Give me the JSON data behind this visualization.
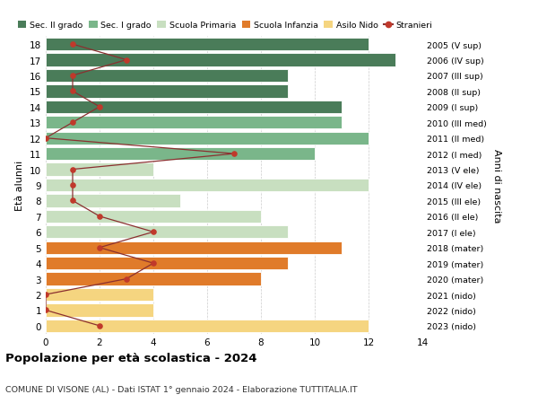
{
  "ages": [
    18,
    17,
    16,
    15,
    14,
    13,
    12,
    11,
    10,
    9,
    8,
    7,
    6,
    5,
    4,
    3,
    2,
    1,
    0
  ],
  "right_labels": [
    "2005 (V sup)",
    "2006 (IV sup)",
    "2007 (III sup)",
    "2008 (II sup)",
    "2009 (I sup)",
    "2010 (III med)",
    "2011 (II med)",
    "2012 (I med)",
    "2013 (V ele)",
    "2014 (IV ele)",
    "2015 (III ele)",
    "2016 (II ele)",
    "2017 (I ele)",
    "2018 (mater)",
    "2019 (mater)",
    "2020 (mater)",
    "2021 (nido)",
    "2022 (nido)",
    "2023 (nido)"
  ],
  "bar_values": [
    12,
    13,
    9,
    9,
    11,
    11,
    12,
    10,
    4,
    12,
    5,
    8,
    9,
    11,
    9,
    8,
    4,
    4,
    12
  ],
  "bar_colors": [
    "#4a7c59",
    "#4a7c59",
    "#4a7c59",
    "#4a7c59",
    "#4a7c59",
    "#7ab68a",
    "#7ab68a",
    "#7ab68a",
    "#c8dfc0",
    "#c8dfc0",
    "#c8dfc0",
    "#c8dfc0",
    "#c8dfc0",
    "#e07b2a",
    "#e07b2a",
    "#e07b2a",
    "#f5d580",
    "#f5d580",
    "#f5d580"
  ],
  "stranieri_values": [
    1,
    3,
    1,
    1,
    2,
    1,
    0,
    7,
    1,
    1,
    1,
    2,
    4,
    2,
    4,
    3,
    0,
    0,
    2
  ],
  "title": "Popolazione per età scolastica - 2024",
  "subtitle": "COMUNE DI VISONE (AL) - Dati ISTAT 1° gennaio 2024 - Elaborazione TUTTITALIA.IT",
  "ylabel": "Età alunni",
  "right_ylabel": "Anni di nascita",
  "xlim": [
    0,
    14
  ],
  "xticks": [
    0,
    2,
    4,
    6,
    8,
    10,
    12,
    14
  ],
  "legend_labels": [
    "Sec. II grado",
    "Sec. I grado",
    "Scuola Primaria",
    "Scuola Infanzia",
    "Asilo Nido",
    "Stranieri"
  ],
  "legend_colors": [
    "#4a7c59",
    "#7ab68a",
    "#c8dfc0",
    "#e07b2a",
    "#f5d580",
    "#c0392b"
  ],
  "bar_height": 0.82,
  "background_color": "#ffffff",
  "grid_color": "#cccccc",
  "stranieri_line_color": "#8b3030",
  "stranieri_dot_color": "#c0392b"
}
